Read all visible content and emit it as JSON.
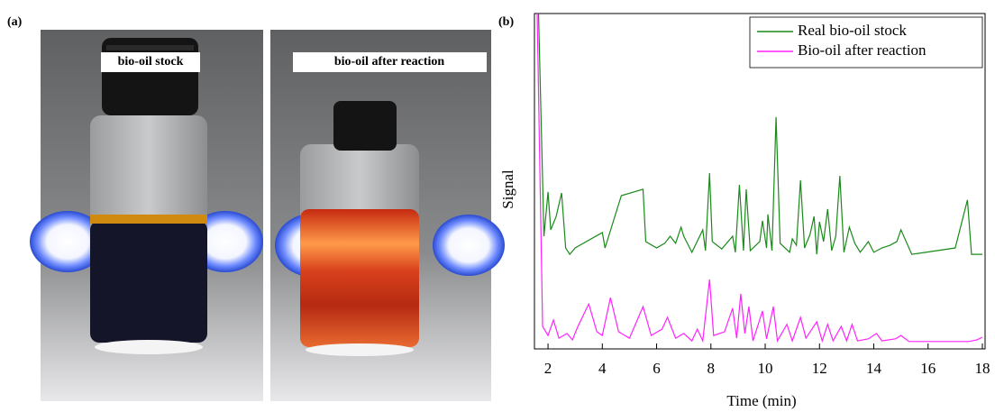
{
  "figure": {
    "panel_a_label": "(a)",
    "photos": [
      {
        "caption": "bio-oil stock"
      },
      {
        "caption": "bio-oil after reaction"
      }
    ]
  },
  "chart_data": {
    "type": "line",
    "panel_label": "(b)",
    "x_label": "Time (min)",
    "y_label": "Signal",
    "xlim": [
      1.5,
      18.1
    ],
    "xticks": [
      2,
      4,
      6,
      8,
      10,
      12,
      14,
      16,
      18
    ],
    "ylim": [
      0,
      100
    ],
    "legend": "upper right",
    "series": [
      {
        "name": "Real bio-oil stock",
        "color": "#1a8a1a",
        "x": [
          1.65,
          1.85,
          2.0,
          2.1,
          2.3,
          2.5,
          2.65,
          2.8,
          3.0,
          4.0,
          4.1,
          4.7,
          5.5,
          5.6,
          6.0,
          6.3,
          6.5,
          6.7,
          6.9,
          7.0,
          7.3,
          7.7,
          7.8,
          7.95,
          8.05,
          8.4,
          8.8,
          8.9,
          9.05,
          9.2,
          9.3,
          9.45,
          9.8,
          9.9,
          10.05,
          10.1,
          10.25,
          10.4,
          10.55,
          10.9,
          11.0,
          11.15,
          11.3,
          11.45,
          11.65,
          11.8,
          11.9,
          12.0,
          12.15,
          12.3,
          12.45,
          12.6,
          12.75,
          12.9,
          13.1,
          13.3,
          13.5,
          13.8,
          14.0,
          14.3,
          14.6,
          14.85,
          15.0,
          15.4,
          17.0,
          17.45,
          17.6,
          18.0
        ],
        "values": [
          100,
          33.6,
          46.8,
          35.5,
          39.5,
          46.5,
          30.1,
          28.2,
          30.1,
          34.7,
          30.1,
          45.7,
          47.6,
          32.0,
          30.1,
          31.5,
          33.6,
          31.5,
          36.3,
          33.6,
          28.8,
          35.5,
          29.3,
          52.4,
          32.0,
          29.8,
          33.6,
          28.8,
          48.9,
          29.3,
          47.6,
          29.3,
          32.0,
          38.2,
          30.1,
          40.1,
          29.3,
          69.1,
          31.5,
          28.8,
          32.8,
          30.9,
          50.3,
          30.1,
          34.1,
          39.5,
          28.2,
          37.9,
          32.0,
          41.7,
          29.3,
          33.6,
          51.6,
          28.8,
          36.3,
          31.5,
          28.8,
          32.0,
          28.8,
          30.1,
          30.9,
          32.0,
          35.5,
          28.2,
          30.1,
          44.4,
          28.2,
          28.2
        ]
      },
      {
        "name": "Bio-oil after reaction",
        "color": "#ff22ff",
        "x": [
          1.6,
          1.8,
          2.0,
          2.2,
          2.4,
          2.7,
          2.9,
          3.1,
          3.5,
          3.8,
          4.0,
          4.3,
          4.6,
          5.0,
          5.5,
          5.8,
          6.2,
          6.4,
          6.7,
          7.0,
          7.3,
          7.5,
          7.7,
          7.95,
          8.1,
          8.5,
          8.8,
          8.95,
          9.1,
          9.25,
          9.4,
          9.55,
          9.9,
          10.05,
          10.3,
          10.45,
          10.8,
          11.0,
          11.3,
          11.5,
          11.9,
          12.1,
          12.3,
          12.5,
          12.8,
          13.0,
          13.2,
          13.4,
          13.8,
          14.1,
          14.3,
          14.8,
          15.0,
          15.3,
          16.5,
          17.5,
          17.8,
          18.0
        ],
        "values": [
          100,
          6.7,
          4.0,
          8.6,
          3.2,
          4.6,
          2.7,
          6.7,
          13.4,
          5.1,
          4.0,
          15.3,
          5.1,
          3.2,
          12.6,
          4.0,
          5.9,
          9.4,
          3.2,
          4.6,
          2.4,
          5.9,
          2.4,
          20.7,
          4.0,
          5.1,
          12.1,
          3.2,
          16.4,
          4.6,
          12.6,
          2.4,
          11.3,
          3.0,
          12.6,
          2.4,
          7.3,
          2.4,
          9.4,
          3.2,
          8.1,
          2.4,
          7.3,
          2.4,
          6.7,
          2.4,
          7.3,
          2.4,
          3.0,
          4.6,
          2.4,
          3.0,
          4.0,
          2.2,
          2.2,
          2.2,
          2.7,
          3.5
        ]
      }
    ]
  }
}
